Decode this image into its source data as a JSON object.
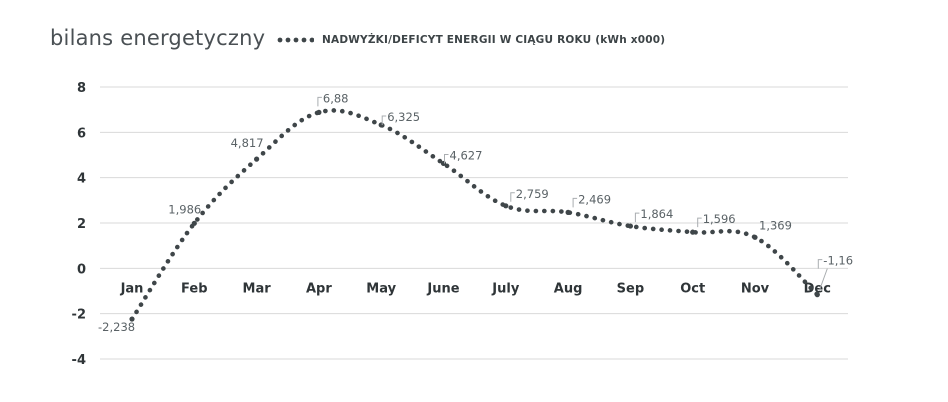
{
  "title": "bilans energetyczny",
  "legend": {
    "label": "NADWYŻKI/DEFICYT ENERGII W CIĄGU ROKU (kWh x000)"
  },
  "colors": {
    "series": "#3f4649",
    "grid": "#d9d9d9",
    "text": "#2f3538",
    "label": "#5a6266",
    "leader": "#a9adb0"
  },
  "chart_data": {
    "type": "line",
    "title": "bilans energetyczny",
    "xlabel": "",
    "ylabel": "",
    "ylim": [
      -4,
      8
    ],
    "yticks": [
      8,
      6,
      4,
      2,
      0,
      -2,
      -4
    ],
    "grid": true,
    "legend_position": "top",
    "categories": [
      "Jan",
      "Feb",
      "Mar",
      "Apr",
      "May",
      "June",
      "July",
      "Aug",
      "Sep",
      "Oct",
      "Nov",
      "Dec"
    ],
    "series": [
      {
        "name": "NADWYŻKI/DEFICYT ENERGII W CIĄGU ROKU (kWh x000)",
        "style": "dotted",
        "values": [
          -2.238,
          1.986,
          4.817,
          6.88,
          6.325,
          4.627,
          2.759,
          2.469,
          1.864,
          1.596,
          1.369,
          -1.16
        ],
        "data_labels": [
          "-2,238",
          "1,986",
          "4,817",
          "6,88",
          "6,325",
          "4,627",
          "2,759",
          "2,469",
          "1,864",
          "1,596",
          "1,369",
          "-1,16"
        ]
      }
    ]
  }
}
